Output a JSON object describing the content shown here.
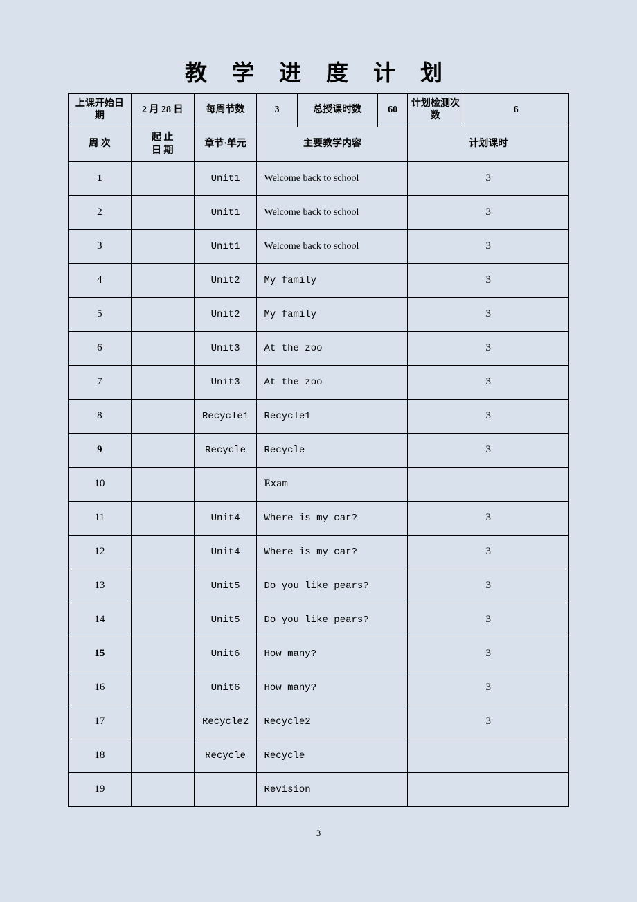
{
  "title": "教 学 进 度 计 划",
  "header_row1": {
    "start_date_label": "上课开始日　期",
    "start_date_value": "2 月 28 日",
    "weekly_classes_label": "每周节数",
    "weekly_classes_value": "3",
    "total_classes_label": "总授课时数",
    "total_classes_value": "60",
    "test_count_label": "计划检测次数",
    "test_count_value": "6"
  },
  "header_row2": {
    "week_label": "周 次",
    "date_label": "起 止\n日 期",
    "unit_label": "章节·单元",
    "content_label": "主要教学内容",
    "hours_label": "计划课时"
  },
  "rows": [
    {
      "week": "1",
      "date": "",
      "unit": "Unit1",
      "content": "Welcome back to school",
      "content_style": "serif",
      "hours": "3",
      "bold": true
    },
    {
      "week": "2",
      "date": "",
      "unit": "Unit1",
      "content": "Welcome back to school",
      "content_style": "serif",
      "hours": "3",
      "bold": false
    },
    {
      "week": "3",
      "date": "",
      "unit": "Unit1",
      "content": "Welcome back to school",
      "content_style": "serif",
      "hours": "3",
      "bold": false
    },
    {
      "week": "4",
      "date": "",
      "unit": "Unit2",
      "content": "My family",
      "content_style": "mono",
      "hours": "3",
      "bold": false
    },
    {
      "week": "5",
      "date": "",
      "unit": "Unit2",
      "content": "My family",
      "content_style": "mono",
      "hours": "3",
      "bold": false
    },
    {
      "week": "6",
      "date": "",
      "unit": "Unit3",
      "content": "At the zoo",
      "content_style": "mono",
      "hours": "3",
      "bold": false
    },
    {
      "week": "7",
      "date": "",
      "unit": "Unit3",
      "content": "At the zoo",
      "content_style": "mono",
      "hours": "3",
      "bold": false
    },
    {
      "week": "8",
      "date": "",
      "unit": "Recycle1",
      "content": "Recycle1",
      "content_style": "mono",
      "hours": "3",
      "bold": false
    },
    {
      "week": "9",
      "date": "",
      "unit": "Recycle",
      "content": "Recycle",
      "content_style": "mono",
      "hours": "3",
      "bold": true
    },
    {
      "week": "10",
      "date": "",
      "unit": "",
      "content": "Exam",
      "content_style": "cap",
      "hours": "",
      "bold": false
    },
    {
      "week": "11",
      "date": "",
      "unit": "Unit4",
      "content": "Where is my car?",
      "content_style": "mono",
      "hours": "3",
      "bold": false
    },
    {
      "week": "12",
      "date": "",
      "unit": "Unit4",
      "content": "Where is my car?",
      "content_style": "mono",
      "hours": "3",
      "bold": false
    },
    {
      "week": "13",
      "date": "",
      "unit": "Unit5",
      "content": "Do you like pears?",
      "content_style": "mono",
      "hours": "3",
      "bold": false
    },
    {
      "week": "14",
      "date": "",
      "unit": "Unit5",
      "content": "Do you like pears?",
      "content_style": "mono",
      "hours": "3",
      "bold": false
    },
    {
      "week": "15",
      "date": "",
      "unit": "Unit6",
      "content": "How many?",
      "content_style": "mono",
      "hours": "3",
      "bold": true
    },
    {
      "week": "16",
      "date": "",
      "unit": "Unit6",
      "content": "How many?",
      "content_style": "mono",
      "hours": "3",
      "bold": false
    },
    {
      "week": "17",
      "date": "",
      "unit": "Recycle2",
      "content": "Recycle2",
      "content_style": "mono",
      "hours": "3",
      "bold": false
    },
    {
      "week": "18",
      "date": "",
      "unit": "Recycle",
      "content": "Recycle",
      "content_style": "mono",
      "hours": "",
      "bold": false
    },
    {
      "week": "19",
      "date": "",
      "unit": "",
      "content": "Revision",
      "content_style": "mono",
      "hours": "",
      "bold": false
    }
  ],
  "page_number": "3",
  "colors": {
    "background": "#d9e2ec",
    "border": "#000000",
    "text": "#000000"
  },
  "col_widths": {
    "week": "12.5%",
    "date": "12.5%",
    "unit": "12.5%",
    "content_part1": "8%",
    "content_part2": "16%",
    "content_part3": "6%",
    "hours_part1": "11%",
    "hours_part2": "21%"
  }
}
